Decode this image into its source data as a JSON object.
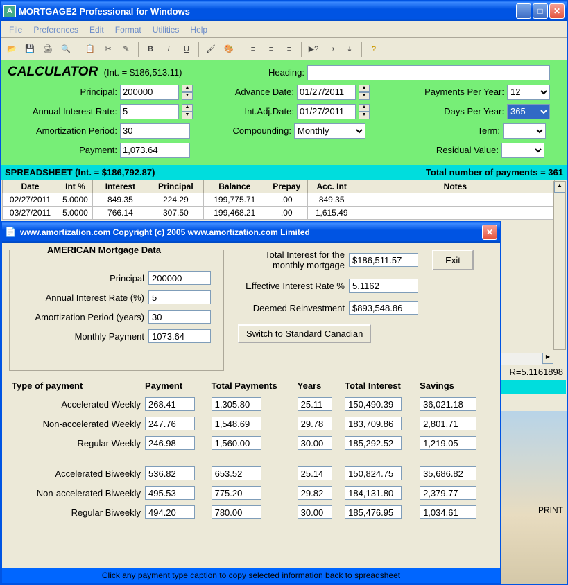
{
  "mainWindow": {
    "title": "MORTGAGE2 Professional for Windows",
    "icon": "A"
  },
  "menu": [
    "File",
    "Preferences",
    "Edit",
    "Format",
    "Utilities",
    "Help"
  ],
  "calculator": {
    "title": "CALCULATOR",
    "subtitle": "(Int. = $186,513.11)",
    "headingLabel": "Heading:",
    "headingValue": "",
    "fields": {
      "principalLabel": "Principal:",
      "principal": "200000",
      "rateLabel": "Annual Interest Rate:",
      "rate": "5",
      "amortLabel": "Amortization Period:",
      "amort": "30",
      "paymentLabel": "Payment:",
      "payment": "1,073.64",
      "advDateLabel": "Advance Date:",
      "advDate": "01/27/2011",
      "intAdjLabel": "Int.Adj.Date:",
      "intAdjDate": "01/27/2011",
      "compLabel": "Compounding:",
      "comp": "Monthly",
      "ppyLabel": "Payments Per Year:",
      "ppy": "12",
      "dpyLabel": "Days Per Year:",
      "dpy": "365",
      "termLabel": "Term:",
      "term": "",
      "residualLabel": "Residual Value:",
      "residual": ""
    }
  },
  "spreadsheet": {
    "title": "SPREADSHEET (Int. = $186,792.87)",
    "totalLabel": "Total number of payments =  361",
    "columns": [
      "Date",
      "Int %",
      "Interest",
      "Principal",
      "Balance",
      "Prepay",
      "Acc. Int",
      "Notes"
    ],
    "rows": [
      [
        "02/27/2011",
        "5.0000",
        "849.35",
        "224.29",
        "199,775.71",
        ".00",
        "849.35",
        ""
      ],
      [
        "03/27/2011",
        "5.0000",
        "766.14",
        "307.50",
        "199,468.21",
        ".00",
        "1,615.49",
        ""
      ]
    ]
  },
  "statusR": "R=5.1161898",
  "modal": {
    "title": "www.amortization.com       Copyright (c) 2005 www.amortization.com Limited",
    "legend": "AMERICAN Mortgage Data",
    "leftFields": {
      "principalLabel": "Principal",
      "principal": "200000",
      "rateLabel": "Annual Interest Rate (%)",
      "rate": "5",
      "amortLabel": "Amortization Period (years)",
      "amort": "30",
      "paymentLabel": "Monthly Payment",
      "payment": "1073.64"
    },
    "rightFields": {
      "totalIntLabel": "Total Interest for the monthly mortgage",
      "totalInt": "$186,511.57",
      "effRateLabel": "Effective Interest Rate %",
      "effRate": "5.1162",
      "deemedLabel": "Deemed Reinvestment",
      "deemed": "$893,548.86"
    },
    "switchBtn": "Switch to Standard Canadian",
    "exitBtn": "Exit",
    "tableHeaders": [
      "Type of payment",
      "Payment",
      "Total Payments",
      "Years",
      "Total Interest",
      "Savings"
    ],
    "paymentRows": [
      {
        "label": "Accelerated Weekly",
        "payment": "268.41",
        "total": "1,305.80",
        "years": "25.11",
        "interest": "150,490.39",
        "savings": "36,021.18"
      },
      {
        "label": "Non-accelerated Weekly",
        "payment": "247.76",
        "total": "1,548.69",
        "years": "29.78",
        "interest": "183,709.86",
        "savings": "2,801.71"
      },
      {
        "label": "Regular Weekly",
        "payment": "246.98",
        "total": "1,560.00",
        "years": "30.00",
        "interest": "185,292.52",
        "savings": "1,219.05"
      },
      {
        "label": "Accelerated Biweekly",
        "payment": "536.82",
        "total": "653.52",
        "years": "25.14",
        "interest": "150,824.75",
        "savings": "35,686.82"
      },
      {
        "label": "Non-accelerated Biweekly",
        "payment": "495.53",
        "total": "775.20",
        "years": "29.82",
        "interest": "184,131.80",
        "savings": "2,379.77"
      },
      {
        "label": "Regular Biweekly",
        "payment": "494.20",
        "total": "780.00",
        "years": "30.00",
        "interest": "185,476.95",
        "savings": "1,034.61"
      }
    ],
    "footer": "Click any payment type caption to copy selected information back to spreadsheet"
  },
  "printLabel": "PRINT"
}
